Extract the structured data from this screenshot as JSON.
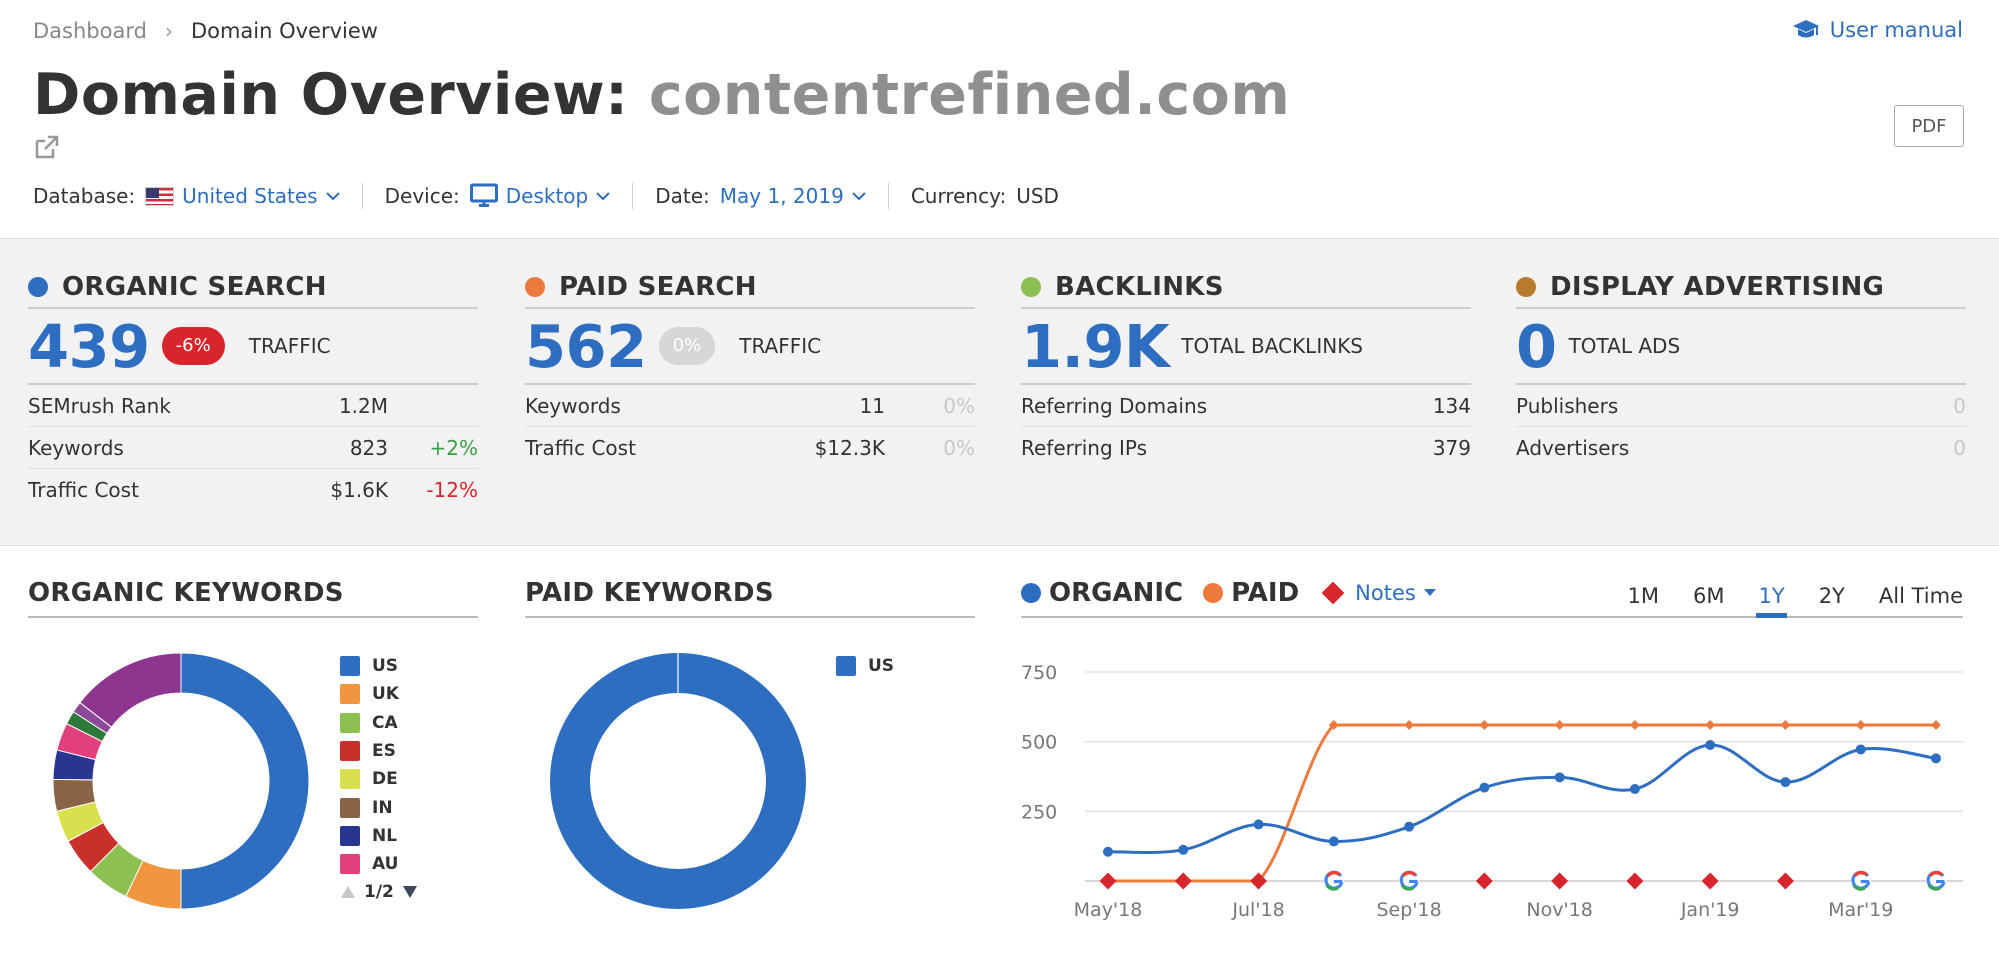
{
  "breadcrumb": {
    "root": "Dashboard",
    "current": "Domain Overview"
  },
  "header": {
    "title_prefix": "Domain Overview: ",
    "domain": "contentrefined.com",
    "user_manual": "User manual",
    "pdf_label": "PDF"
  },
  "filters": {
    "database_label": "Database:",
    "database_value": "United States",
    "device_label": "Device:",
    "device_value": "Desktop",
    "date_label": "Date:",
    "date_value": "May 1, 2019",
    "currency_label": "Currency:",
    "currency_value": "USD"
  },
  "colors": {
    "organic": "#2e6ec0",
    "paid": "#ec7a3c",
    "backlinks": "#8cc152",
    "display": "#b97a2e",
    "accent": "#2e6ec0",
    "negative": "#d7262b",
    "positive": "#3aa142"
  },
  "widgets": {
    "organic": {
      "title": "ORGANIC SEARCH",
      "value": "439",
      "badge": "-6%",
      "label": "TRAFFIC",
      "rows": [
        {
          "label": "SEMrush Rank",
          "value": "1.2M",
          "change": ""
        },
        {
          "label": "Keywords",
          "value": "823",
          "change": "+2%"
        },
        {
          "label": "Traffic Cost",
          "value": "$1.6K",
          "change": "-12%"
        }
      ]
    },
    "paid": {
      "title": "PAID SEARCH",
      "value": "562",
      "badge": "0%",
      "label": "TRAFFIC",
      "rows": [
        {
          "label": "Keywords",
          "value": "11",
          "change": "0%"
        },
        {
          "label": "Traffic Cost",
          "value": "$12.3K",
          "change": "0%"
        }
      ]
    },
    "backlinks": {
      "title": "BACKLINKS",
      "value": "1.9K",
      "label": "TOTAL BACKLINKS",
      "rows": [
        {
          "label": "Referring Domains",
          "value": "134"
        },
        {
          "label": "Referring IPs",
          "value": "379"
        }
      ]
    },
    "display": {
      "title": "DISPLAY ADVERTISING",
      "value": "0",
      "label": "TOTAL ADS",
      "rows": [
        {
          "label": "Publishers",
          "value": "0"
        },
        {
          "label": "Advertisers",
          "value": "0"
        }
      ]
    }
  },
  "organic_keywords": {
    "title": "ORGANIC KEYWORDS",
    "legend": [
      "US",
      "UK",
      "CA",
      "ES",
      "DE",
      "IN",
      "NL",
      "AU"
    ],
    "pager": "1/2",
    "slices": [
      {
        "name": "US",
        "share": 0.5,
        "color": "#2e6ec0"
      },
      {
        "name": "UK",
        "share": 0.071,
        "color": "#f0963e"
      },
      {
        "name": "CA",
        "share": 0.054,
        "color": "#8cc152"
      },
      {
        "name": "ES",
        "share": 0.047,
        "color": "#c9302c"
      },
      {
        "name": "DE",
        "share": 0.04,
        "color": "#d9e04d"
      },
      {
        "name": "IN",
        "share": 0.04,
        "color": "#8a6344"
      },
      {
        "name": "NL",
        "share": 0.037,
        "color": "#2a3592"
      },
      {
        "name": "AU",
        "share": 0.035,
        "color": "#e2407c"
      },
      {
        "name": "other-1",
        "share": 0.017,
        "color": "#2f7a3a"
      },
      {
        "name": "other-2",
        "share": 0.014,
        "color": "#8e4a9a"
      },
      {
        "name": "other-3",
        "share": 0.145,
        "color": "#8e3590"
      }
    ]
  },
  "paid_keywords": {
    "title": "PAID KEYWORDS",
    "legend": [
      "US"
    ],
    "slices": [
      {
        "name": "US",
        "share": 1.0,
        "color": "#2e6ec0"
      }
    ]
  },
  "trend_header": {
    "organic_label": "ORGANIC",
    "paid_label": "PAID",
    "notes_label": "Notes",
    "periods": [
      "1M",
      "6M",
      "1Y",
      "2Y",
      "All Time"
    ],
    "active_period": "1Y"
  },
  "chart_data": {
    "type": "line",
    "ylim": [
      0,
      750
    ],
    "yticks": [
      "750",
      "500",
      "250"
    ],
    "x": [
      "May'18",
      "Jun'18",
      "Jul'18",
      "Aug'18",
      "Sep'18",
      "Oct'18",
      "Nov'18",
      "Dec'18",
      "Jan'19",
      "Feb'19",
      "Mar'19",
      "Apr'19"
    ],
    "xticks": [
      "May'18",
      "Jul'18",
      "Sep'18",
      "Nov'18",
      "Jan'19",
      "Mar'19"
    ],
    "series": [
      {
        "name": "ORGANIC",
        "color": "#2e6ec0",
        "values": [
          105,
          112,
          203,
          142,
          195,
          335,
          372,
          330,
          488,
          355,
          472,
          440
        ]
      },
      {
        "name": "PAID",
        "color": "#ec7a3c",
        "values": [
          0,
          0,
          0,
          560,
          560,
          560,
          560,
          560,
          560,
          560,
          560,
          560
        ]
      }
    ],
    "notes": [
      "diamond",
      "diamond",
      "diamond",
      "google",
      "google",
      "diamond",
      "diamond",
      "diamond",
      "diamond",
      "diamond",
      "google",
      "google"
    ]
  }
}
